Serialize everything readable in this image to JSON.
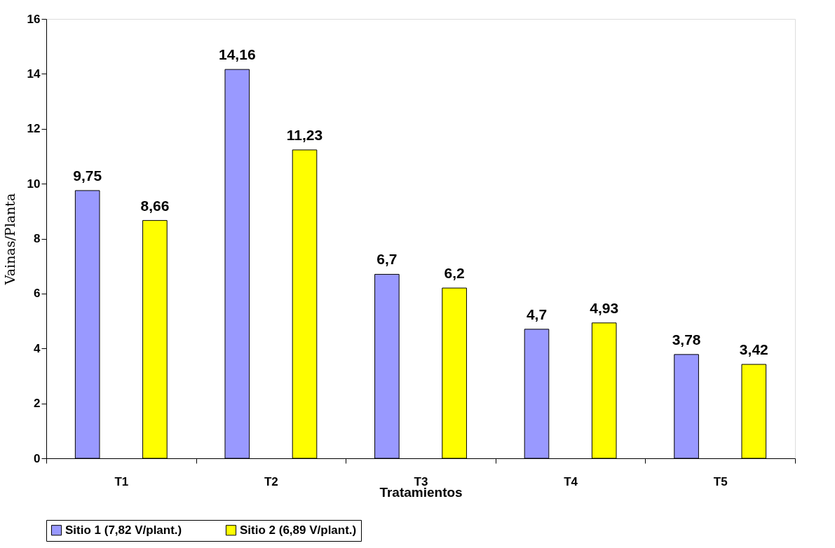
{
  "chart_data": {
    "type": "bar",
    "xlabel": "Tratamientos",
    "ylabel": "Vainas/Planta",
    "categories": [
      "T1",
      "T2",
      "T3",
      "T4",
      "T5"
    ],
    "series": [
      {
        "name": "Sitio 1 (7,82 V/plant.)",
        "color": "#9999ff",
        "values": [
          9.75,
          14.16,
          6.7,
          4.7,
          3.78
        ],
        "value_labels": [
          "9,75",
          "14,16",
          "6,7",
          "4,7",
          "3,78"
        ]
      },
      {
        "name": "Sitio 2 (6,89 V/plant.)",
        "color": "#ffff00",
        "values": [
          8.66,
          11.23,
          6.2,
          4.93,
          3.42
        ],
        "value_labels": [
          "8,66",
          "11,23",
          "6,2",
          "4,93",
          "3,42"
        ]
      }
    ],
    "ylim": [
      0,
      16
    ],
    "yticks": [
      0,
      2,
      4,
      6,
      8,
      10,
      12,
      14,
      16
    ],
    "grid": false,
    "legend": "bottom"
  }
}
